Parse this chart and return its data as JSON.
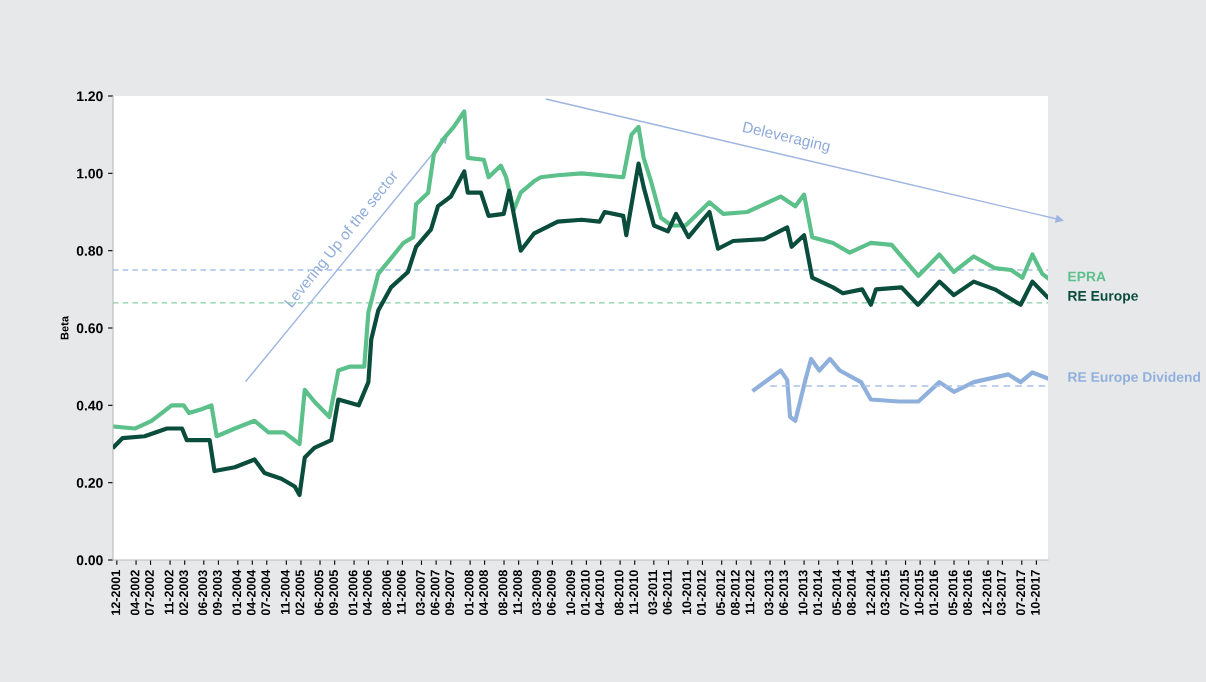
{
  "chart_data": {
    "type": "line",
    "ylabel": "Beta",
    "legend": false,
    "grid": false,
    "line_style": "solid",
    "marker": "none",
    "xlim": [
      "2001-11-07",
      "2017-12-13"
    ],
    "ylim": [
      0,
      1.2
    ],
    "yticks": [
      {
        "value": 0,
        "label": "0.00"
      },
      {
        "value": 0.2,
        "label": "0.20"
      },
      {
        "value": 0.4,
        "label": "0.40"
      },
      {
        "value": 0.6,
        "label": "0.60"
      },
      {
        "value": 0.8,
        "label": "0.80"
      },
      {
        "value": 1.0,
        "label": "1.00"
      },
      {
        "value": 1.2,
        "label": "1.20"
      }
    ],
    "xticks": [
      {
        "value": "2001-12",
        "label": "12-2001"
      },
      {
        "value": "2002-04",
        "label": "04-2002"
      },
      {
        "value": "2002-07",
        "label": "07-2002"
      },
      {
        "value": "2002-11",
        "label": "11-2002"
      },
      {
        "value": "2003-02",
        "label": "02-2003"
      },
      {
        "value": "2003-06",
        "label": "06-2003"
      },
      {
        "value": "2003-09",
        "label": "09-2003"
      },
      {
        "value": "2004-01",
        "label": "01-2004"
      },
      {
        "value": "2004-04",
        "label": "04-2004"
      },
      {
        "value": "2004-07",
        "label": "07-2004"
      },
      {
        "value": "2004-11",
        "label": "11-2004"
      },
      {
        "value": "2005-02",
        "label": "02-2005"
      },
      {
        "value": "2005-06",
        "label": "06-2005"
      },
      {
        "value": "2005-09",
        "label": "09-2005"
      },
      {
        "value": "2006-01",
        "label": "01-2006"
      },
      {
        "value": "2006-04",
        "label": "04-2006"
      },
      {
        "value": "2006-08",
        "label": "08-2006"
      },
      {
        "value": "2006-11",
        "label": "11-2006"
      },
      {
        "value": "2007-03",
        "label": "03-2007"
      },
      {
        "value": "2007-06",
        "label": "06-2007"
      },
      {
        "value": "2007-09",
        "label": "09-2007"
      },
      {
        "value": "2008-01",
        "label": "01-2008"
      },
      {
        "value": "2008-04",
        "label": "04-2008"
      },
      {
        "value": "2008-08",
        "label": "08-2008"
      },
      {
        "value": "2008-11",
        "label": "11-2008"
      },
      {
        "value": "2009-03",
        "label": "03-2009"
      },
      {
        "value": "2009-06",
        "label": "06-2009"
      },
      {
        "value": "2009-10",
        "label": "10-2009"
      },
      {
        "value": "2010-01",
        "label": "01-2010"
      },
      {
        "value": "2010-04",
        "label": "04-2010"
      },
      {
        "value": "2010-08",
        "label": "08-2010"
      },
      {
        "value": "2010-11",
        "label": "11-2010"
      },
      {
        "value": "2011-03",
        "label": "03-2011"
      },
      {
        "value": "2011-06",
        "label": "06-2011"
      },
      {
        "value": "2011-10",
        "label": "10-2011"
      },
      {
        "value": "2012-01",
        "label": "01-2012"
      },
      {
        "value": "2012-05",
        "label": "05-2012"
      },
      {
        "value": "2012-08",
        "label": "08-2012"
      },
      {
        "value": "2012-11",
        "label": "11-2012"
      },
      {
        "value": "2013-03",
        "label": "03-2013"
      },
      {
        "value": "2013-06",
        "label": "06-2013"
      },
      {
        "value": "2013-10",
        "label": "10-2013"
      },
      {
        "value": "2014-01",
        "label": "01-2014"
      },
      {
        "value": "2014-05",
        "label": "05-2014"
      },
      {
        "value": "2014-08",
        "label": "08-2014"
      },
      {
        "value": "2014-12",
        "label": "12-2014"
      },
      {
        "value": "2015-03",
        "label": "03-2015"
      },
      {
        "value": "2015-07",
        "label": "07-2015"
      },
      {
        "value": "2015-10",
        "label": "10-2015"
      },
      {
        "value": "2016-01",
        "label": "01-2016"
      },
      {
        "value": "2016-05",
        "label": "05-2016"
      },
      {
        "value": "2016-08",
        "label": "08-2016"
      },
      {
        "value": "2016-12",
        "label": "12-2016"
      },
      {
        "value": "2017-03",
        "label": "03-2017"
      },
      {
        "value": "2017-07",
        "label": "07-2017"
      },
      {
        "value": "2017-10",
        "label": "10-2017"
      }
    ],
    "ref_lines": [
      {
        "axis": "y",
        "value": 0.75,
        "color": "#a9c2e6",
        "line_style": "dashed"
      },
      {
        "axis": "y",
        "value": 0.665,
        "color": "#86cfa6",
        "line_style": "dashed"
      }
    ],
    "annotations": [
      "Levering Up of the sector",
      "Deleveraging"
    ],
    "series": [
      {
        "name": "EPRA",
        "color": "#5cc08a",
        "x": [
          "2001-11-14",
          "2002-03-24",
          "2002-07-08",
          "2002-11-11",
          "2003-01-26",
          "2003-02-28",
          "2003-05-18",
          "2003-07-19",
          "2003-08-21",
          "2003-12-13",
          "2004-04-15",
          "2004-07-12",
          "2004-10-19",
          "2005-01-23",
          "2005-02-25",
          "2005-04-26",
          "2005-07-30",
          "2005-09-24",
          "2005-12-02",
          "2006-03-06",
          "2006-04-01",
          "2006-06-02",
          "2006-08-21",
          "2006-11-07",
          "2007-01-08",
          "2007-01-26",
          "2007-04-12",
          "2007-05-18",
          "2007-07-19",
          "2007-09-20",
          "2007-11-25",
          "2007-12-17",
          "2008-03-27",
          "2008-04-26",
          "2008-07-12",
          "2008-08-14",
          "2008-10-01",
          "2008-11-14",
          "2009-02-07",
          "2009-03-20",
          "2009-07-05",
          "2009-12-02",
          "2010-08-21",
          "2010-10-12",
          "2010-11-25",
          "2010-12-27",
          "2011-02-11",
          "2011-04-15",
          "2011-06-20",
          "2011-09-17",
          "2012-02-14",
          "2012-05-11",
          "2012-10-08",
          "2013-05-07",
          "2013-08-07",
          "2013-10-01",
          "2013-11-21",
          "2014-04-01",
          "2014-07-15",
          "2014-11-25",
          "2015-04-05",
          "2015-06-06",
          "2015-09-20",
          "2016-01-30",
          "2016-04-30",
          "2016-09-02",
          "2017-01-12",
          "2017-04-26",
          "2017-07-05",
          "2017-09-06",
          "2017-11-07",
          "2017-12-09"
        ],
        "values": [
          0.345,
          0.34,
          0.36,
          0.4,
          0.4,
          0.38,
          0.39,
          0.4,
          0.32,
          0.34,
          0.36,
          0.33,
          0.33,
          0.3,
          0.44,
          0.41,
          0.37,
          0.49,
          0.5,
          0.5,
          0.64,
          0.74,
          0.78,
          0.82,
          0.835,
          0.92,
          0.95,
          1.05,
          1.09,
          1.12,
          1.16,
          1.04,
          1.035,
          0.99,
          1.02,
          0.99,
          0.905,
          0.95,
          0.98,
          0.99,
          0.995,
          1.0,
          0.99,
          1.1,
          1.12,
          1.04,
          0.98,
          0.885,
          0.865,
          0.865,
          0.925,
          0.895,
          0.9,
          0.94,
          0.915,
          0.945,
          0.835,
          0.82,
          0.795,
          0.82,
          0.815,
          0.785,
          0.735,
          0.79,
          0.745,
          0.785,
          0.755,
          0.75,
          0.73,
          0.79,
          0.74,
          0.73
        ]
      },
      {
        "name": "RE Europe",
        "color": "#0b4d3c",
        "x": [
          "2001-11-14",
          "2002-01-05",
          "2002-05-25",
          "2002-10-12",
          "2003-01-15",
          "2003-02-14",
          "2003-07-08",
          "2003-08-07",
          "2003-12-13",
          "2004-04-15",
          "2004-06-17",
          "2004-10-01",
          "2004-12-24",
          "2005-01-23",
          "2005-02-25",
          "2005-04-26",
          "2005-08-11",
          "2005-09-24",
          "2006-01-30",
          "2006-04-01",
          "2006-04-19",
          "2006-06-02",
          "2006-08-21",
          "2006-12-06",
          "2007-01-26",
          "2007-04-30",
          "2007-06-13",
          "2007-09-02",
          "2007-11-25",
          "2007-12-17",
          "2008-03-09",
          "2008-04-26",
          "2008-07-30",
          "2008-09-02",
          "2008-10-01",
          "2008-11-14",
          "2009-02-07",
          "2009-07-05",
          "2009-12-02",
          "2010-03-24",
          "2010-04-26",
          "2010-08-21",
          "2010-09-09",
          "2010-11-25",
          "2010-12-27",
          "2011-03-02",
          "2011-05-29",
          "2011-07-19",
          "2011-10-05",
          "2012-02-14",
          "2012-04-08",
          "2012-07-12",
          "2013-01-23",
          "2013-06-17",
          "2013-07-15",
          "2013-10-01",
          "2013-11-21",
          "2014-04-01",
          "2014-06-02",
          "2014-10-01",
          "2014-11-25",
          "2014-12-27",
          "2015-06-06",
          "2015-09-17",
          "2016-01-30",
          "2016-04-30",
          "2016-09-02",
          "2017-01-12",
          "2017-06-24",
          "2017-09-06",
          "2017-12-09"
        ],
        "values": [
          0.293,
          0.315,
          0.32,
          0.34,
          0.34,
          0.31,
          0.31,
          0.23,
          0.24,
          0.26,
          0.225,
          0.21,
          0.19,
          0.168,
          0.265,
          0.29,
          0.31,
          0.415,
          0.4,
          0.46,
          0.57,
          0.645,
          0.705,
          0.745,
          0.81,
          0.855,
          0.915,
          0.94,
          1.005,
          0.95,
          0.95,
          0.89,
          0.895,
          0.955,
          0.895,
          0.8,
          0.845,
          0.875,
          0.88,
          0.875,
          0.9,
          0.89,
          0.84,
          1.025,
          0.965,
          0.865,
          0.85,
          0.895,
          0.835,
          0.9,
          0.805,
          0.825,
          0.83,
          0.86,
          0.81,
          0.84,
          0.73,
          0.705,
          0.69,
          0.7,
          0.66,
          0.7,
          0.705,
          0.66,
          0.72,
          0.685,
          0.72,
          0.7,
          0.66,
          0.72,
          0.68
        ]
      },
      {
        "name": "RE Europe Dividend",
        "color": "#8fb0dc",
        "x": [
          "2012-11-21",
          "2013-05-07",
          "2013-06-17",
          "2013-07-05",
          "2013-08-07",
          "2013-10-12",
          "2013-11-14",
          "2014-01-05",
          "2014-03-13",
          "2014-05-14",
          "2014-09-24",
          "2014-11-25",
          "2015-05-18",
          "2015-09-20",
          "2016-01-30",
          "2016-04-30",
          "2016-09-02",
          "2017-04-08",
          "2017-06-24",
          "2017-09-06",
          "2017-12-09"
        ],
        "values": [
          0.44,
          0.49,
          0.465,
          0.37,
          0.36,
          0.47,
          0.52,
          0.49,
          0.52,
          0.49,
          0.46,
          0.415,
          0.41,
          0.41,
          0.46,
          0.435,
          0.46,
          0.48,
          0.46,
          0.485,
          0.47
        ]
      },
      {
        "color": "#a9c2e6",
        "line_style": "dashed",
        "x": [
          "2013-03-02",
          "2017-12-09"
        ],
        "values": [
          0.45,
          0.45
        ]
      }
    ]
  }
}
